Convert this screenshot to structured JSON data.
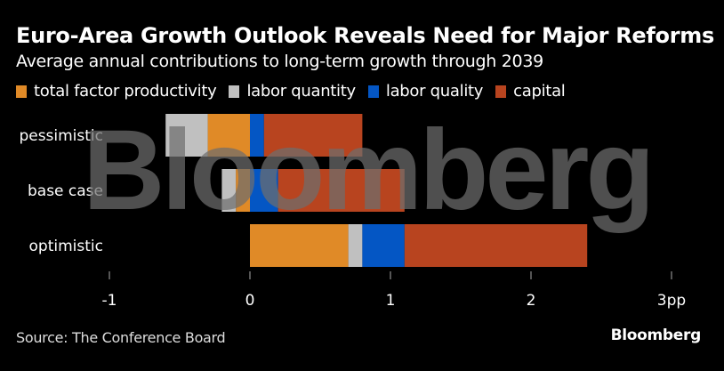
{
  "chart_data": {
    "type": "bar",
    "orientation": "horizontal",
    "stacked": true,
    "title": "Euro-Area Growth Outlook Reveals Need for Major Reforms",
    "subtitle": "Average annual contributions to long-term growth through 2039",
    "categories": [
      "pessimistic",
      "base case",
      "optimistic"
    ],
    "series": [
      {
        "name": "total factor productivity",
        "color": "#E08A27",
        "values": [
          -0.3,
          -0.1,
          0.7
        ]
      },
      {
        "name": "labor quantity",
        "color": "#C0C0C0",
        "values": [
          -0.3,
          -0.1,
          0.1
        ]
      },
      {
        "name": "labor quality",
        "color": "#0456C4",
        "values": [
          0.1,
          0.2,
          0.3
        ]
      },
      {
        "name": "capital",
        "color": "#B8441F",
        "values": [
          0.7,
          0.9,
          1.3
        ]
      }
    ],
    "xlim": [
      -1,
      3
    ],
    "xticks": [
      -1,
      0,
      1,
      2,
      3
    ],
    "xtick_labels": [
      "-1",
      "0",
      "1",
      "2",
      "3pp"
    ],
    "xlabel": "",
    "ylabel": "",
    "grid": false,
    "legend_position": "top-left",
    "source": "Source: The Conference Board",
    "brand": "Bloomberg",
    "watermark": "Bloomberg"
  }
}
